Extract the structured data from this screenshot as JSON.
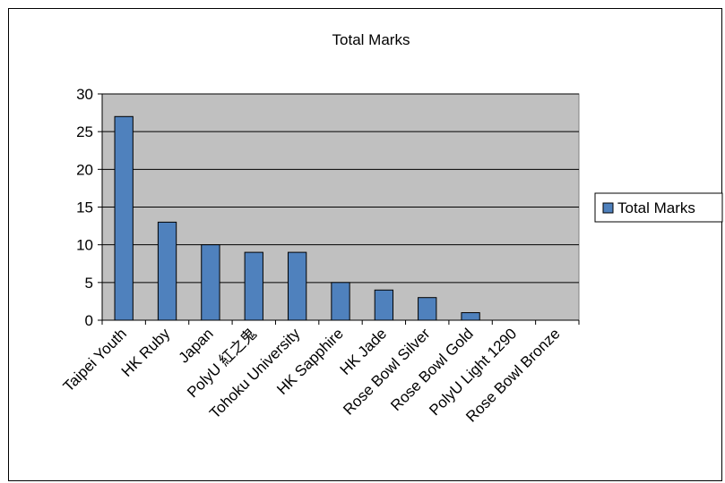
{
  "chart_data": {
    "type": "bar",
    "title": "Total Marks",
    "xlabel": "",
    "ylabel": "",
    "ylim": [
      0,
      30
    ],
    "yticks": [
      0,
      5,
      10,
      15,
      20,
      25,
      30
    ],
    "grid": true,
    "legend_position": "right",
    "categories": [
      "Taipei Youth",
      "HK Ruby",
      "Japan",
      "PolyU 紅之鬼",
      "Tohoku University",
      "HK Sapphire",
      "HK Jade",
      "Rose Bowl Silver",
      "Rose Bowl Gold",
      "PolyU Light 1290",
      "Rose Bowl Bronze"
    ],
    "series": [
      {
        "name": "Total Marks",
        "values": [
          27,
          13,
          10,
          9,
          9,
          5,
          4,
          3,
          1,
          0,
          0
        ]
      }
    ],
    "colors": {
      "bar_fill": "#4f81bd",
      "bar_stroke": "#000000",
      "plot_background": "#c0c0c0",
      "gridline": "#000000"
    }
  }
}
